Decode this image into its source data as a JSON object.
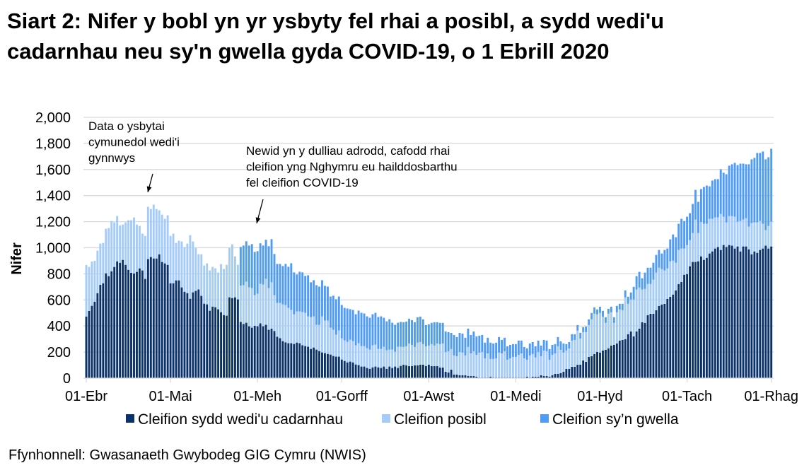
{
  "title": "Siart 2: Nifer y bobl yn yr ysbyty fel rhai a posibl, a sydd wedi'u cadarnhau neu sy'n gwella gyda COVID-19, o 1 Ebrill 2020",
  "source": "Ffynhonnell: Gwasanaeth Gwybodeg GIG Cymru (NWIS)",
  "colors": {
    "confirmed": "#0b3268",
    "possible": "#a5cbf8",
    "recovering": "#509cf5",
    "grid": "#d9d9d9"
  },
  "chart_data": {
    "type": "bar",
    "stacked": true,
    "title": "Siart 2: Nifer y bobl yn yr ysbyty fel rhai a posibl, a sydd wedi'u cadarnhau neu sy'n gwella gyda COVID-19, o 1 Ebrill 2020",
    "xlabel": "",
    "ylabel": "Nifer",
    "ylim": [
      0,
      2000
    ],
    "yticks": [
      "0",
      "200",
      "400",
      "600",
      "800",
      "1,000",
      "1,200",
      "1,400",
      "1,600",
      "1,800",
      "2,000"
    ],
    "ytick_values": [
      0,
      200,
      400,
      600,
      800,
      1000,
      1200,
      1400,
      1600,
      1800,
      2000
    ],
    "x_start": "2020-04-01",
    "x_end": "2020-12-01",
    "xticks": [
      {
        "label": "01-Ebr",
        "day": 0
      },
      {
        "label": "01-Mai",
        "day": 30
      },
      {
        "label": "01-Meh",
        "day": 61
      },
      {
        "label": "01-Gorff",
        "day": 91
      },
      {
        "label": "01-Awst",
        "day": 122
      },
      {
        "label": "01-Medi",
        "day": 153
      },
      {
        "label": "01-Hyd",
        "day": 183
      },
      {
        "label": "01-Tach",
        "day": 214
      },
      {
        "label": "01-Rhag",
        "day": 244
      }
    ],
    "grid": true,
    "legend_position": "bottom",
    "annotations": [
      {
        "lines": [
          "Data o ysbytai",
          "cymunedol wedi'i",
          "gynnwys"
        ],
        "day": 22
      },
      {
        "lines": [
          "Newid yn y dulliau adrodd, cafodd rhai",
          "cleifion yng Nghymru eu hailddosbarthu",
          "fel cleifion COVID-19"
        ],
        "day": 60
      }
    ],
    "series": [
      {
        "name": "Cleifion sydd wedi'u cadarnhau",
        "key": "confirmed",
        "values": [
          473,
          515,
          555,
          587,
          652,
          716,
          728,
          804,
          782,
          820,
          853,
          896,
          885,
          907,
          869,
          831,
          808,
          802,
          815,
          842,
          826,
          761,
          913,
          929,
          918,
          918,
          950,
          891,
          880,
          869,
          728,
          728,
          750,
          750,
          696,
          663,
          652,
          609,
          658,
          669,
          680,
          631,
          571,
          566,
          517,
          549,
          544,
          528,
          506,
          484,
          479,
          620,
          614,
          620,
          604,
          431,
          416,
          425,
          398,
          387,
          402,
          398,
          420,
          398,
          409,
          371,
          380,
          362,
          318,
          307,
          284,
          275,
          268,
          268,
          262,
          273,
          268,
          252,
          246,
          241,
          224,
          235,
          219,
          208,
          197,
          192,
          186,
          181,
          170,
          165,
          165,
          143,
          132,
          121,
          127,
          121,
          105,
          100,
          89,
          89,
          78,
          72,
          83,
          89,
          83,
          78,
          89,
          72,
          89,
          78,
          89,
          78,
          94,
          103,
          98,
          92,
          92,
          98,
          98,
          103,
          103,
          92,
          103,
          92,
          92,
          92,
          81,
          81,
          49,
          43,
          65,
          27,
          27,
          22,
          22,
          22,
          16,
          16,
          16,
          11,
          5,
          5,
          5,
          5,
          11,
          5,
          5,
          5,
          5,
          5,
          5,
          5,
          5,
          5,
          5,
          5,
          5,
          11,
          5,
          11,
          11,
          11,
          22,
          16,
          16,
          11,
          22,
          33,
          33,
          38,
          49,
          71,
          71,
          87,
          87,
          103,
          103,
          136,
          125,
          163,
          168,
          185,
          201,
          196,
          212,
          217,
          228,
          250,
          255,
          266,
          288,
          293,
          299,
          337,
          358,
          320,
          358,
          380,
          429,
          424,
          483,
          494,
          494,
          521,
          554,
          565,
          570,
          608,
          624,
          641,
          673,
          722,
          738,
          793,
          798,
          858,
          891,
          891,
          896,
          934,
          907,
          923,
          956,
          972,
          994,
          1005,
          983,
          1021,
          1005,
          1021,
          1016,
          994,
          1010,
          972,
          1010,
          1010,
          988,
          950,
          972,
          961,
          983,
          994,
          1016,
          994,
          1010
        ]
      },
      {
        "name": "Cleifion posibl",
        "key": "possible",
        "values": [
          394,
          338,
          339,
          313,
          326,
          316,
          309,
          342,
          369,
          385,
          341,
          347,
          286,
          271,
          325,
          380,
          403,
          430,
          363,
          325,
          282,
          330,
          401,
          368,
          412,
          379,
          337,
          363,
          342,
          380,
          363,
          380,
          287,
          304,
          352,
          342,
          380,
          488,
          390,
          330,
          270,
          319,
          293,
          314,
          309,
          304,
          298,
          282,
          369,
          353,
          390,
          379,
          412,
          314,
          265,
          279,
          297,
          315,
          299,
          304,
          235,
          250,
          304,
          320,
          353,
          320,
          355,
          275,
          259,
          270,
          282,
          286,
          271,
          255,
          228,
          239,
          244,
          255,
          255,
          233,
          245,
          239,
          190,
          201,
          277,
          250,
          256,
          206,
          201,
          168,
          201,
          163,
          158,
          158,
          168,
          163,
          147,
          168,
          157,
          157,
          152,
          147,
          169,
          168,
          141,
          146,
          152,
          142,
          130,
          141,
          114,
          163,
          147,
          136,
          146,
          174,
          163,
          141,
          174,
          174,
          158,
          152,
          147,
          169,
          158,
          174,
          180,
          185,
          152,
          163,
          158,
          147,
          141,
          179,
          174,
          152,
          223,
          174,
          190,
          168,
          191,
          196,
          147,
          185,
          136,
          142,
          147,
          191,
          185,
          201,
          136,
          147,
          158,
          158,
          174,
          185,
          147,
          130,
          169,
          174,
          147,
          190,
          146,
          196,
          190,
          130,
          157,
          157,
          211,
          179,
          147,
          141,
          157,
          201,
          206,
          261,
          201,
          217,
          228,
          244,
          283,
          309,
          288,
          304,
          260,
          207,
          266,
          255,
          169,
          239,
          239,
          228,
          320,
          233,
          245,
          283,
          321,
          315,
          250,
          260,
          239,
          228,
          261,
          288,
          293,
          271,
          256,
          234,
          272,
          260,
          212,
          261,
          256,
          201,
          223,
          201,
          222,
          325,
          217,
          264,
          277,
          261,
          266,
          250,
          239,
          228,
          277,
          217,
          190,
          222,
          227,
          244,
          190,
          233,
          206,
          217,
          174,
          239,
          223,
          234,
          222,
          190,
          119,
          173,
          190
        ]
      },
      {
        "name": "Cleifion sy’n gwella",
        "key": "recovering",
        "values": [
          0,
          0,
          0,
          0,
          0,
          0,
          0,
          0,
          0,
          0,
          0,
          0,
          0,
          0,
          0,
          0,
          0,
          0,
          0,
          0,
          0,
          0,
          0,
          0,
          0,
          0,
          0,
          0,
          0,
          0,
          0,
          0,
          0,
          0,
          0,
          0,
          0,
          0,
          0,
          0,
          0,
          0,
          0,
          0,
          0,
          0,
          0,
          0,
          0,
          0,
          0,
          0,
          0,
          0,
          0,
          296,
          304,
          310,
          320,
          337,
          331,
          326,
          310,
          299,
          299,
          321,
          331,
          315,
          299,
          299,
          294,
          315,
          315,
          358,
          321,
          283,
          304,
          304,
          283,
          315,
          266,
          277,
          304,
          293,
          277,
          266,
          260,
          239,
          261,
          272,
          260,
          255,
          249,
          255,
          234,
          239,
          238,
          250,
          255,
          250,
          244,
          244,
          238,
          244,
          245,
          250,
          222,
          222,
          233,
          206,
          206,
          184,
          190,
          190,
          190,
          190,
          190,
          190,
          195,
          195,
          190,
          163,
          163,
          163,
          179,
          163,
          163,
          158,
          157,
          147,
          124,
          157,
          147,
          146,
          146,
          136,
          141,
          141,
          152,
          141,
          130,
          130,
          120,
          120,
          125,
          119,
          120,
          119,
          103,
          104,
          103,
          103,
          98,
          98,
          109,
          98,
          87,
          87,
          92,
          92,
          86,
          87,
          82,
          81,
          82,
          82,
          76,
          71,
          71,
          65,
          70,
          49,
          49,
          49,
          44,
          43,
          44,
          38,
          43,
          44,
          49,
          49,
          38,
          48,
          44,
          43,
          38,
          43,
          43,
          49,
          43,
          49,
          54,
          54,
          54,
          97,
          103,
          120,
          87,
          125,
          125,
          125,
          130,
          136,
          136,
          120,
          157,
          152,
          168,
          201,
          196,
          201,
          228,
          211,
          217,
          206,
          223,
          228,
          239,
          252,
          282,
          293,
          249,
          293,
          293,
          293,
          342,
          337,
          369,
          386,
          397,
          413,
          434,
          440,
          429,
          413,
          478,
          489,
          494,
          532,
          522,
          554,
          543,
          527,
          559
        ]
      }
    ]
  }
}
